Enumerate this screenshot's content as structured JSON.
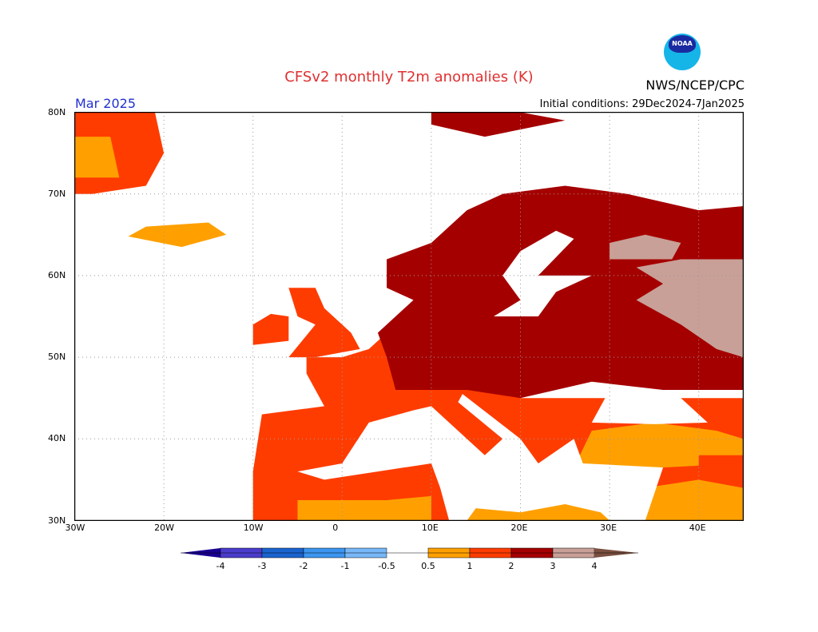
{
  "title": "CFSv2 monthly T2m anomalies (K)",
  "organization": "NWS/NCEP/CPC",
  "logo_text": "NOAA",
  "valid_month": "Mar 2025",
  "initial_conditions": "Initial conditions: 29Dec2024-7Jan2025",
  "map": {
    "lon_range": [
      -30,
      45
    ],
    "lat_range": [
      30,
      80
    ],
    "lon_ticks": [
      {
        "v": -30,
        "t": "30W"
      },
      {
        "v": -20,
        "t": "20W"
      },
      {
        "v": -10,
        "t": "10W"
      },
      {
        "v": 0,
        "t": "0"
      },
      {
        "v": 10,
        "t": "10E"
      },
      {
        "v": 20,
        "t": "20E"
      },
      {
        "v": 30,
        "t": "30E"
      },
      {
        "v": 40,
        "t": "40E"
      }
    ],
    "lat_ticks": [
      {
        "v": 80,
        "t": "80N"
      },
      {
        "v": 70,
        "t": "70N"
      },
      {
        "v": 60,
        "t": "60N"
      },
      {
        "v": 50,
        "t": "50N"
      },
      {
        "v": 40,
        "t": "40N"
      },
      {
        "v": 30,
        "t": "30N"
      }
    ],
    "anomaly_regions": [
      {
        "class": "1-2",
        "points": [
          [
            -30,
            80
          ],
          [
            -21,
            80
          ],
          [
            -20,
            75
          ],
          [
            -22,
            71
          ],
          [
            -28,
            70
          ],
          [
            -30,
            70
          ]
        ]
      },
      {
        "class": "0.5-1",
        "points": [
          [
            -30,
            77
          ],
          [
            -26,
            77
          ],
          [
            -25,
            72
          ],
          [
            -30,
            72
          ]
        ]
      },
      {
        "class": "0.5-1",
        "points": [
          [
            -24,
            64.8
          ],
          [
            -22,
            66
          ],
          [
            -15,
            66.5
          ],
          [
            -13,
            65
          ],
          [
            -18,
            63.5
          ]
        ]
      },
      {
        "class": "2-3",
        "points": [
          [
            10,
            80
          ],
          [
            20,
            80
          ],
          [
            25,
            79
          ],
          [
            16,
            77
          ],
          [
            10,
            78.5
          ]
        ]
      },
      {
        "class": "1-2",
        "points": [
          [
            -10,
            36
          ],
          [
            -9,
            43
          ],
          [
            -2,
            44
          ],
          [
            -4,
            48
          ],
          [
            -4,
            50
          ],
          [
            0,
            50
          ],
          [
            3,
            51
          ],
          [
            5,
            53
          ],
          [
            10,
            54
          ],
          [
            14,
            50
          ],
          [
            20,
            45
          ],
          [
            28,
            45
          ],
          [
            36,
            45
          ],
          [
            45,
            45
          ],
          [
            45,
            30
          ],
          [
            -10,
            30
          ]
        ]
      },
      {
        "class": "1-2",
        "points": [
          [
            -6,
            50
          ],
          [
            -3,
            50
          ],
          [
            2,
            51
          ],
          [
            1,
            53
          ],
          [
            0,
            54
          ],
          [
            -2,
            56
          ],
          [
            -3,
            58.5
          ],
          [
            -6,
            58.5
          ],
          [
            -5,
            55
          ],
          [
            -3,
            54
          ]
        ]
      },
      {
        "class": "1-2",
        "points": [
          [
            -10,
            51.5
          ],
          [
            -6,
            52
          ],
          [
            -6,
            55
          ],
          [
            -8,
            55.3
          ],
          [
            -10,
            54
          ]
        ]
      },
      {
        "class": "0.5-1",
        "points": [
          [
            -5,
            30
          ],
          [
            -5,
            32.5
          ],
          [
            5,
            32.5
          ],
          [
            10,
            33
          ],
          [
            10,
            30
          ]
        ]
      },
      {
        "class": "0.5-1",
        "points": [
          [
            26,
            36.5
          ],
          [
            28,
            41
          ],
          [
            35,
            42
          ],
          [
            42,
            41
          ],
          [
            45,
            40
          ],
          [
            45,
            37
          ],
          [
            36,
            36.5
          ]
        ]
      },
      {
        "class": "0.5-1",
        "points": [
          [
            34,
            30
          ],
          [
            34,
            34
          ],
          [
            40,
            35
          ],
          [
            45,
            34
          ],
          [
            45,
            30
          ]
        ]
      },
      {
        "class": "1-2",
        "points": [
          [
            40,
            38
          ],
          [
            45,
            38
          ],
          [
            45,
            34
          ],
          [
            40,
            35
          ]
        ]
      },
      {
        "class": "2-3",
        "points": [
          [
            4,
            53
          ],
          [
            8,
            57
          ],
          [
            5,
            58.5
          ],
          [
            5,
            62
          ],
          [
            10,
            64
          ],
          [
            14,
            68
          ],
          [
            18,
            70
          ],
          [
            25,
            71
          ],
          [
            32,
            70
          ],
          [
            40,
            68
          ],
          [
            45,
            68.5
          ],
          [
            45,
            46
          ],
          [
            36,
            46
          ],
          [
            28,
            47
          ],
          [
            20,
            45
          ],
          [
            14,
            46
          ],
          [
            6,
            46
          ],
          [
            5,
            50
          ]
        ]
      },
      {
        "class": "3-4",
        "points": [
          [
            30,
            64
          ],
          [
            34,
            65
          ],
          [
            38,
            64
          ],
          [
            37,
            62
          ],
          [
            30,
            62
          ]
        ]
      },
      {
        "class": "3-4",
        "points": [
          [
            33,
            61
          ],
          [
            38,
            62
          ],
          [
            45,
            62
          ],
          [
            45,
            50
          ],
          [
            42,
            51
          ],
          [
            38,
            54
          ],
          [
            33,
            57
          ],
          [
            36,
            59
          ]
        ]
      },
      {
        "class": "sea",
        "points": [
          [
            -5,
            36
          ],
          [
            0,
            37
          ],
          [
            3,
            42
          ],
          [
            8,
            43.5
          ],
          [
            10,
            44
          ],
          [
            12,
            42
          ],
          [
            16,
            38
          ],
          [
            18,
            40
          ],
          [
            13,
            44.5
          ],
          [
            13.5,
            45.5
          ],
          [
            20,
            40
          ],
          [
            22,
            37
          ],
          [
            26,
            40
          ],
          [
            27,
            37
          ],
          [
            36,
            36.5
          ],
          [
            34,
            30
          ],
          [
            12,
            30
          ],
          [
            11,
            34
          ],
          [
            10,
            37
          ],
          [
            -2,
            35
          ]
        ]
      },
      {
        "class": "sea",
        "points": [
          [
            28,
            42
          ],
          [
            30,
            46
          ],
          [
            34,
            46
          ],
          [
            38,
            45
          ],
          [
            41,
            42
          ],
          [
            35,
            41.8
          ]
        ]
      },
      {
        "class": "sea",
        "points": [
          [
            17,
            55
          ],
          [
            20,
            57
          ],
          [
            18,
            60
          ],
          [
            20,
            63
          ],
          [
            24,
            65.5
          ],
          [
            26,
            64.5
          ],
          [
            22,
            60
          ],
          [
            28,
            60
          ],
          [
            24,
            58
          ],
          [
            22,
            55
          ]
        ]
      },
      {
        "class": "0.5-1",
        "points": [
          [
            14,
            30
          ],
          [
            15,
            31.5
          ],
          [
            20,
            31
          ],
          [
            25,
            32
          ],
          [
            29,
            31
          ],
          [
            30,
            30
          ]
        ]
      }
    ]
  },
  "colorbar": {
    "labels": [
      "-4",
      "-3",
      "-2",
      "-1",
      "-0.5",
      "0.5",
      "1",
      "2",
      "3",
      "4"
    ],
    "colors": {
      "lt-4": "#1a0090",
      "-4--3": "#4b3ccc",
      "-3--2": "#1a64d0",
      "-2--1": "#3c96f0",
      "-1--0.5": "#78b8f8",
      "0.5-1": "#ffa000",
      "1-2": "#ff3c00",
      "2-3": "#a50000",
      "3-4": "#c8a098",
      "gt4": "#7a5040",
      "sea": "#ffffff"
    }
  }
}
